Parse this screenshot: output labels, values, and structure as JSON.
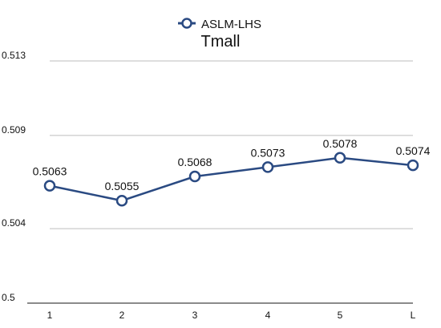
{
  "chart_data": {
    "type": "line",
    "title": "Tmall",
    "xlabel": "",
    "ylabel": "",
    "categories": [
      "1",
      "2",
      "3",
      "4",
      "5",
      "L"
    ],
    "series": [
      {
        "name": "ASLM-LHS",
        "values": [
          0.5063,
          0.5055,
          0.5068,
          0.5073,
          0.5078,
          0.5074
        ],
        "labels": [
          "0.5063",
          "0.5055",
          "0.5068",
          "0.5073",
          "0.5078",
          "0.5074"
        ],
        "color": "#2a4a82",
        "marker": "hollow-circle"
      }
    ],
    "y_ticks": [
      0.5,
      0.504,
      0.509,
      0.513
    ],
    "y_tick_labels": [
      "0.5",
      "0.504",
      "0.509",
      "0.513"
    ],
    "ylim": [
      0.5,
      0.513
    ],
    "grid": true,
    "legend": "top-center"
  }
}
